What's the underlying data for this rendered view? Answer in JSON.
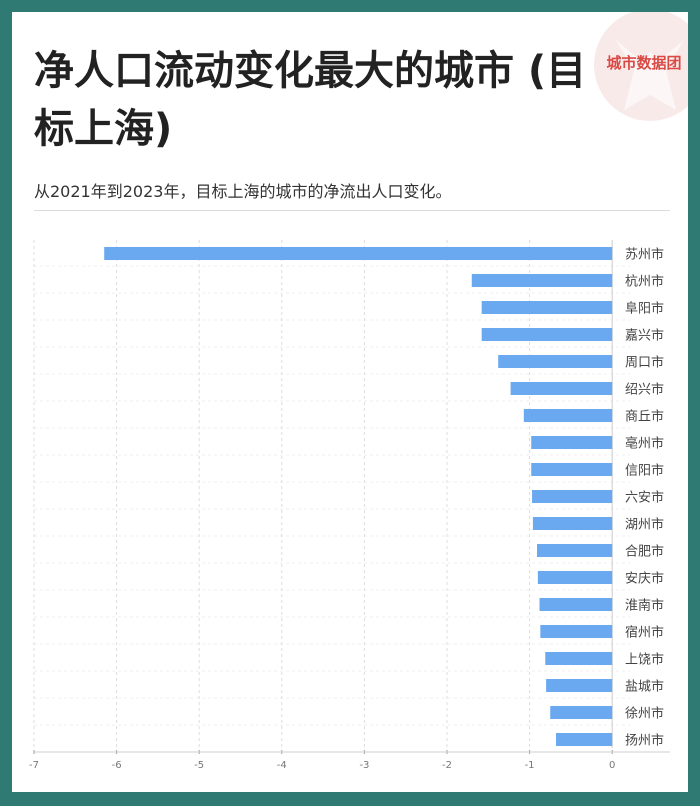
{
  "header": {
    "title": "净人口流动变化最大的城市 (目标上海)",
    "subtitle": "从2021年到2023年，目标上海的城市的净流出人口变化。",
    "logo_text": "城市数据团"
  },
  "colors": {
    "background": "#2f7a72",
    "bar": "#6aa8f0",
    "logo": "#d94a45"
  },
  "chart_data": {
    "type": "bar",
    "orientation": "horizontal",
    "categories": [
      "苏州市",
      "杭州市",
      "阜阳市",
      "嘉兴市",
      "周口市",
      "绍兴市",
      "商丘市",
      "亳州市",
      "信阳市",
      "六安市",
      "湖州市",
      "合肥市",
      "安庆市",
      "淮南市",
      "宿州市",
      "上饶市",
      "盐城市",
      "徐州市",
      "扬州市"
    ],
    "values": [
      -6.15,
      -1.7,
      -1.58,
      -1.58,
      -1.38,
      -1.23,
      -1.07,
      -0.98,
      -0.98,
      -0.97,
      -0.96,
      -0.91,
      -0.9,
      -0.88,
      -0.87,
      -0.81,
      -0.8,
      -0.75,
      -0.68
    ],
    "xlim": [
      -7,
      0.7
    ],
    "xticks": [
      -7,
      -6,
      -5,
      -4,
      -3,
      -2,
      -1,
      0
    ],
    "grid": true,
    "title": "",
    "xlabel": "",
    "ylabel": ""
  }
}
